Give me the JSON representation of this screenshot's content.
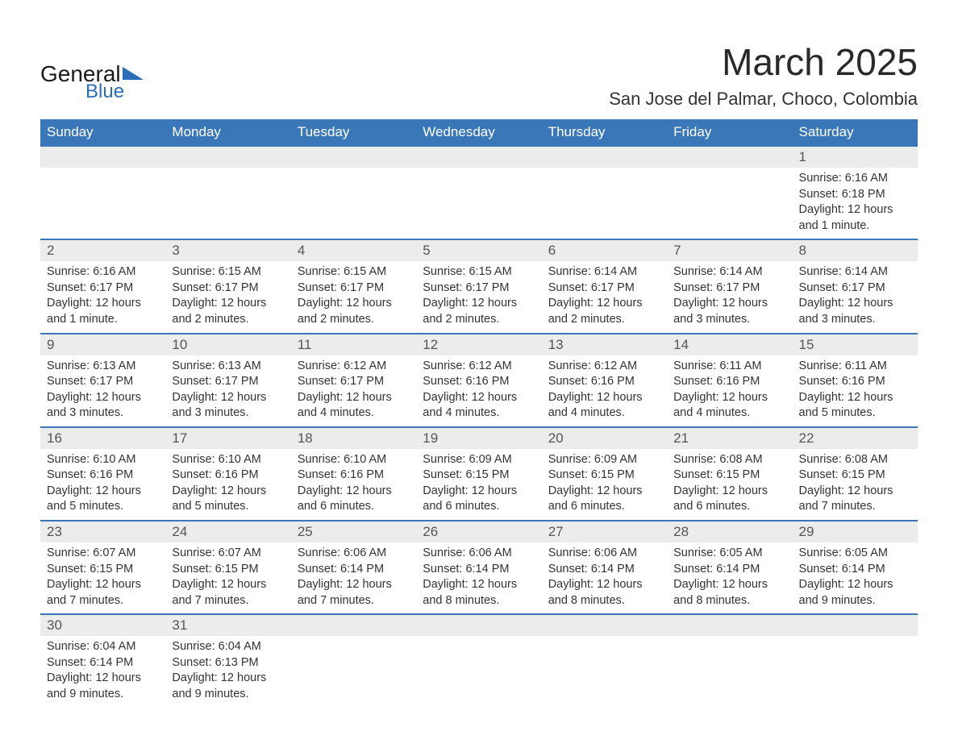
{
  "logo": {
    "general": "General",
    "blue": "Blue"
  },
  "header": {
    "title": "March 2025",
    "location": "San Jose del Palmar, Choco, Colombia"
  },
  "colors": {
    "header_bg": "#3a77b8",
    "header_text": "#ffffff",
    "daynum_bg": "#ececec",
    "row_border": "#3a77b8",
    "text": "#333333",
    "logo_blue": "#2a6db8"
  },
  "day_headers": [
    "Sunday",
    "Monday",
    "Tuesday",
    "Wednesday",
    "Thursday",
    "Friday",
    "Saturday"
  ],
  "weeks": [
    [
      null,
      null,
      null,
      null,
      null,
      null,
      {
        "n": "1",
        "sunrise": "Sunrise: 6:16 AM",
        "sunset": "Sunset: 6:18 PM",
        "daylight": "Daylight: 12 hours and 1 minute."
      }
    ],
    [
      {
        "n": "2",
        "sunrise": "Sunrise: 6:16 AM",
        "sunset": "Sunset: 6:17 PM",
        "daylight": "Daylight: 12 hours and 1 minute."
      },
      {
        "n": "3",
        "sunrise": "Sunrise: 6:15 AM",
        "sunset": "Sunset: 6:17 PM",
        "daylight": "Daylight: 12 hours and 2 minutes."
      },
      {
        "n": "4",
        "sunrise": "Sunrise: 6:15 AM",
        "sunset": "Sunset: 6:17 PM",
        "daylight": "Daylight: 12 hours and 2 minutes."
      },
      {
        "n": "5",
        "sunrise": "Sunrise: 6:15 AM",
        "sunset": "Sunset: 6:17 PM",
        "daylight": "Daylight: 12 hours and 2 minutes."
      },
      {
        "n": "6",
        "sunrise": "Sunrise: 6:14 AM",
        "sunset": "Sunset: 6:17 PM",
        "daylight": "Daylight: 12 hours and 2 minutes."
      },
      {
        "n": "7",
        "sunrise": "Sunrise: 6:14 AM",
        "sunset": "Sunset: 6:17 PM",
        "daylight": "Daylight: 12 hours and 3 minutes."
      },
      {
        "n": "8",
        "sunrise": "Sunrise: 6:14 AM",
        "sunset": "Sunset: 6:17 PM",
        "daylight": "Daylight: 12 hours and 3 minutes."
      }
    ],
    [
      {
        "n": "9",
        "sunrise": "Sunrise: 6:13 AM",
        "sunset": "Sunset: 6:17 PM",
        "daylight": "Daylight: 12 hours and 3 minutes."
      },
      {
        "n": "10",
        "sunrise": "Sunrise: 6:13 AM",
        "sunset": "Sunset: 6:17 PM",
        "daylight": "Daylight: 12 hours and 3 minutes."
      },
      {
        "n": "11",
        "sunrise": "Sunrise: 6:12 AM",
        "sunset": "Sunset: 6:17 PM",
        "daylight": "Daylight: 12 hours and 4 minutes."
      },
      {
        "n": "12",
        "sunrise": "Sunrise: 6:12 AM",
        "sunset": "Sunset: 6:16 PM",
        "daylight": "Daylight: 12 hours and 4 minutes."
      },
      {
        "n": "13",
        "sunrise": "Sunrise: 6:12 AM",
        "sunset": "Sunset: 6:16 PM",
        "daylight": "Daylight: 12 hours and 4 minutes."
      },
      {
        "n": "14",
        "sunrise": "Sunrise: 6:11 AM",
        "sunset": "Sunset: 6:16 PM",
        "daylight": "Daylight: 12 hours and 4 minutes."
      },
      {
        "n": "15",
        "sunrise": "Sunrise: 6:11 AM",
        "sunset": "Sunset: 6:16 PM",
        "daylight": "Daylight: 12 hours and 5 minutes."
      }
    ],
    [
      {
        "n": "16",
        "sunrise": "Sunrise: 6:10 AM",
        "sunset": "Sunset: 6:16 PM",
        "daylight": "Daylight: 12 hours and 5 minutes."
      },
      {
        "n": "17",
        "sunrise": "Sunrise: 6:10 AM",
        "sunset": "Sunset: 6:16 PM",
        "daylight": "Daylight: 12 hours and 5 minutes."
      },
      {
        "n": "18",
        "sunrise": "Sunrise: 6:10 AM",
        "sunset": "Sunset: 6:16 PM",
        "daylight": "Daylight: 12 hours and 6 minutes."
      },
      {
        "n": "19",
        "sunrise": "Sunrise: 6:09 AM",
        "sunset": "Sunset: 6:15 PM",
        "daylight": "Daylight: 12 hours and 6 minutes."
      },
      {
        "n": "20",
        "sunrise": "Sunrise: 6:09 AM",
        "sunset": "Sunset: 6:15 PM",
        "daylight": "Daylight: 12 hours and 6 minutes."
      },
      {
        "n": "21",
        "sunrise": "Sunrise: 6:08 AM",
        "sunset": "Sunset: 6:15 PM",
        "daylight": "Daylight: 12 hours and 6 minutes."
      },
      {
        "n": "22",
        "sunrise": "Sunrise: 6:08 AM",
        "sunset": "Sunset: 6:15 PM",
        "daylight": "Daylight: 12 hours and 7 minutes."
      }
    ],
    [
      {
        "n": "23",
        "sunrise": "Sunrise: 6:07 AM",
        "sunset": "Sunset: 6:15 PM",
        "daylight": "Daylight: 12 hours and 7 minutes."
      },
      {
        "n": "24",
        "sunrise": "Sunrise: 6:07 AM",
        "sunset": "Sunset: 6:15 PM",
        "daylight": "Daylight: 12 hours and 7 minutes."
      },
      {
        "n": "25",
        "sunrise": "Sunrise: 6:06 AM",
        "sunset": "Sunset: 6:14 PM",
        "daylight": "Daylight: 12 hours and 7 minutes."
      },
      {
        "n": "26",
        "sunrise": "Sunrise: 6:06 AM",
        "sunset": "Sunset: 6:14 PM",
        "daylight": "Daylight: 12 hours and 8 minutes."
      },
      {
        "n": "27",
        "sunrise": "Sunrise: 6:06 AM",
        "sunset": "Sunset: 6:14 PM",
        "daylight": "Daylight: 12 hours and 8 minutes."
      },
      {
        "n": "28",
        "sunrise": "Sunrise: 6:05 AM",
        "sunset": "Sunset: 6:14 PM",
        "daylight": "Daylight: 12 hours and 8 minutes."
      },
      {
        "n": "29",
        "sunrise": "Sunrise: 6:05 AM",
        "sunset": "Sunset: 6:14 PM",
        "daylight": "Daylight: 12 hours and 9 minutes."
      }
    ],
    [
      {
        "n": "30",
        "sunrise": "Sunrise: 6:04 AM",
        "sunset": "Sunset: 6:14 PM",
        "daylight": "Daylight: 12 hours and 9 minutes."
      },
      {
        "n": "31",
        "sunrise": "Sunrise: 6:04 AM",
        "sunset": "Sunset: 6:13 PM",
        "daylight": "Daylight: 12 hours and 9 minutes."
      },
      null,
      null,
      null,
      null,
      null
    ]
  ]
}
